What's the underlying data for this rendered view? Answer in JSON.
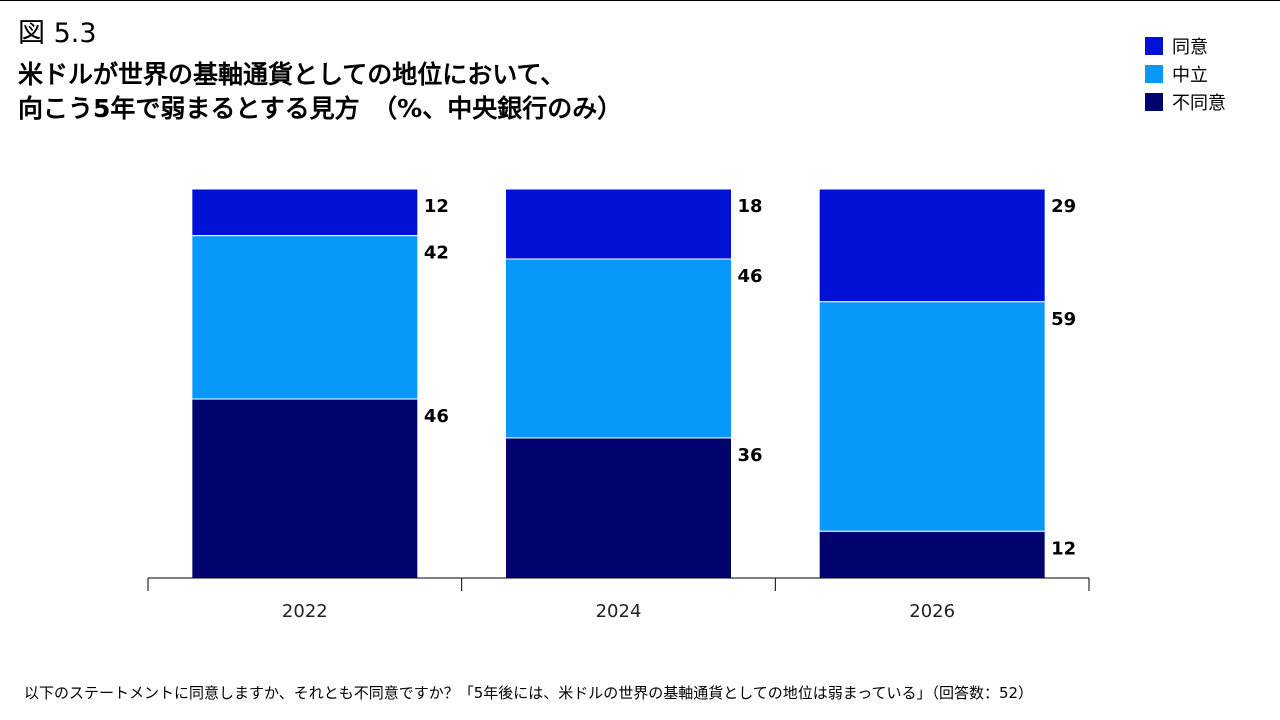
{
  "figure_label": "図 5.3",
  "title_lines": [
    "米ドルが世界の基軸通貨としての地位において、",
    "向こう5年で弱まるとする見方　（%、中央銀行のみ）"
  ],
  "footnote": "以下のステートメントに同意しますか、それとも不同意ですか？「5年後には、米ドルの世界の基軸通貨としての地位は弱まっている」（回答数：52）",
  "colors": {
    "agree": "#0010d4",
    "neutral": "#0898fa",
    "disagree": "#00026e"
  },
  "chart_data": {
    "type": "bar",
    "stacked": true,
    "categories": [
      "2022",
      "2024",
      "2026"
    ],
    "series": [
      {
        "name": "同意",
        "key": "agree",
        "values": [
          12,
          18,
          29
        ]
      },
      {
        "name": "中立",
        "key": "neutral",
        "values": [
          42,
          46,
          59
        ]
      },
      {
        "name": "不同意",
        "key": "disagree",
        "values": [
          46,
          36,
          12
        ]
      }
    ],
    "legend": {
      "placement": "top-right",
      "order": [
        "同意",
        "中立",
        "不同意"
      ]
    },
    "ylim": [
      0,
      100
    ],
    "grid": false
  }
}
